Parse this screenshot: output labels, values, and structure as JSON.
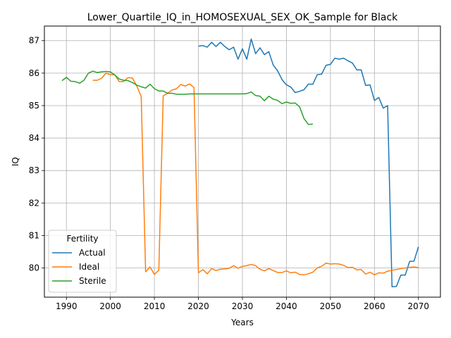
{
  "chart_data": {
    "type": "line",
    "title": "Lower_Quartile_IQ_in_HOMOSEXUAL_SEX_OK_Sample for Black",
    "xlabel": "Years",
    "ylabel": "IQ",
    "xlim": [
      1985,
      2075
    ],
    "ylim": [
      79.1,
      87.45
    ],
    "xticks": [
      1990,
      2000,
      2010,
      2020,
      2030,
      2040,
      2050,
      2060,
      2070
    ],
    "yticks": [
      80,
      81,
      82,
      83,
      84,
      85,
      86,
      87
    ],
    "grid": true,
    "legend": {
      "title": "Fertility",
      "placement": "lower-left"
    },
    "colors": {
      "Actual": "#1f77b4",
      "Ideal": "#ff7f0e",
      "Sterile": "#2ca02c"
    },
    "series": [
      {
        "name": "Actual",
        "x": [
          2020,
          2021,
          2022,
          2023,
          2024,
          2025,
          2026,
          2027,
          2028,
          2029,
          2030,
          2031,
          2032,
          2033,
          2034,
          2035,
          2036,
          2037,
          2038,
          2039,
          2040,
          2041,
          2042,
          2043,
          2044,
          2045,
          2046,
          2047,
          2048,
          2049,
          2050,
          2051,
          2052,
          2053,
          2054,
          2055,
          2056,
          2057,
          2058,
          2059,
          2060,
          2061,
          2062,
          2063,
          2064,
          2065,
          2066,
          2067,
          2068,
          2069,
          2070
        ],
        "values": [
          86.83,
          86.85,
          86.8,
          86.95,
          86.82,
          86.95,
          86.82,
          86.72,
          86.8,
          86.43,
          86.75,
          86.43,
          87.05,
          86.6,
          86.78,
          86.57,
          86.66,
          86.25,
          86.07,
          85.8,
          85.64,
          85.57,
          85.4,
          85.44,
          85.49,
          85.66,
          85.66,
          85.95,
          85.97,
          86.24,
          86.27,
          86.46,
          86.43,
          86.46,
          86.38,
          86.31,
          86.1,
          86.1,
          85.62,
          85.64,
          85.16,
          85.25,
          84.92,
          85.0,
          79.42,
          79.43,
          79.78,
          79.78,
          80.2,
          80.21,
          80.65
        ]
      },
      {
        "name": "Ideal",
        "x": [
          1996,
          1997,
          1998,
          1999,
          2000,
          2001,
          2002,
          2003,
          2004,
          2005,
          2006,
          2007,
          2008,
          2009,
          2010,
          2011,
          2012,
          2013,
          2014,
          2015,
          2016,
          2017,
          2018,
          2019,
          2020,
          2021,
          2022,
          2023,
          2024,
          2025,
          2026,
          2027,
          2028,
          2029,
          2030,
          2031,
          2032,
          2033,
          2034,
          2035,
          2036,
          2037,
          2038,
          2039,
          2040,
          2041,
          2042,
          2043,
          2044,
          2045,
          2046,
          2047,
          2048,
          2049,
          2050,
          2051,
          2052,
          2053,
          2054,
          2055,
          2056,
          2057,
          2058,
          2059,
          2060,
          2061,
          2062,
          2063,
          2064,
          2065,
          2066,
          2067,
          2068,
          2069,
          2070
        ],
        "values": [
          85.78,
          85.78,
          85.84,
          86.0,
          85.95,
          85.95,
          85.74,
          85.74,
          85.86,
          85.85,
          85.6,
          85.28,
          79.88,
          80.03,
          79.8,
          79.93,
          85.3,
          85.38,
          85.48,
          85.52,
          85.65,
          85.6,
          85.67,
          85.55,
          79.85,
          79.95,
          79.82,
          79.98,
          79.92,
          79.96,
          79.97,
          79.99,
          80.07,
          79.99,
          80.05,
          80.07,
          80.11,
          80.07,
          79.96,
          79.91,
          79.98,
          79.92,
          79.86,
          79.86,
          79.91,
          79.85,
          79.87,
          79.8,
          79.79,
          79.82,
          79.87,
          80.0,
          80.05,
          80.15,
          80.12,
          80.13,
          80.12,
          80.08,
          80.01,
          80.02,
          79.94,
          79.95,
          79.81,
          79.87,
          79.79,
          79.85,
          79.84,
          79.9,
          79.93,
          79.95,
          79.98,
          80.0,
          80.02,
          80.03,
          80.01
        ]
      },
      {
        "name": "Sterile",
        "x": [
          1989,
          1990,
          1991,
          1992,
          1993,
          1994,
          1995,
          1996,
          1997,
          1998,
          1999,
          2000,
          2001,
          2002,
          2003,
          2004,
          2005,
          2006,
          2007,
          2008,
          2009,
          2010,
          2011,
          2012,
          2013,
          2014,
          2015,
          2016,
          2017,
          2018,
          2019,
          2020,
          2021,
          2022,
          2023,
          2024,
          2025,
          2026,
          2027,
          2028,
          2029,
          2030,
          2031,
          2032,
          2033,
          2034,
          2035,
          2036,
          2037,
          2038,
          2039,
          2040,
          2041,
          2042,
          2043,
          2044,
          2045,
          2046
        ],
        "values": [
          85.77,
          85.87,
          85.75,
          85.74,
          85.69,
          85.78,
          86.0,
          86.06,
          86.02,
          86.04,
          86.05,
          86.04,
          85.94,
          85.82,
          85.78,
          85.77,
          85.71,
          85.63,
          85.58,
          85.54,
          85.66,
          85.52,
          85.45,
          85.45,
          85.38,
          85.38,
          85.35,
          85.35,
          85.35,
          85.36,
          85.36,
          85.36,
          85.36,
          85.36,
          85.36,
          85.36,
          85.36,
          85.36,
          85.36,
          85.36,
          85.36,
          85.36,
          85.37,
          85.42,
          85.31,
          85.29,
          85.15,
          85.29,
          85.2,
          85.16,
          85.06,
          85.11,
          85.07,
          85.08,
          84.96,
          84.6,
          84.42,
          84.43
        ]
      }
    ]
  }
}
